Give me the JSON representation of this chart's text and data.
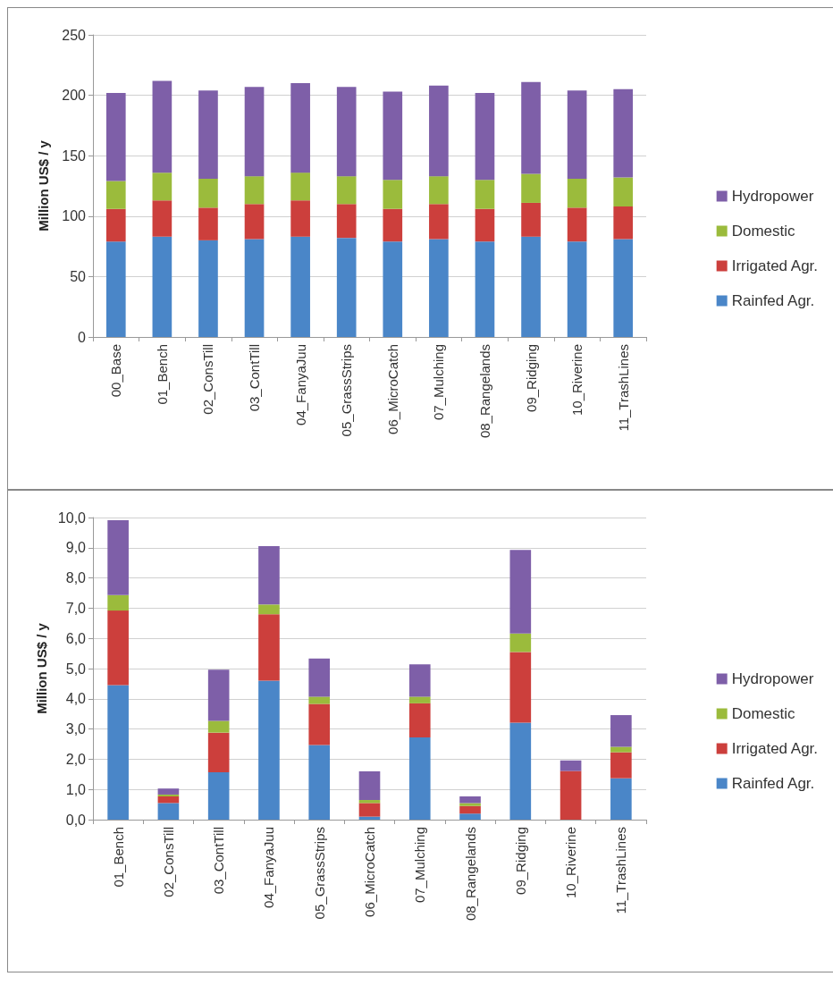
{
  "chart_data": [
    {
      "type": "bar",
      "stacked": true,
      "ylabel": "Million US$ / y",
      "categories": [
        "00_Base",
        "01_Bench",
        "02_ConsTill",
        "03_ContTill",
        "04_FanyaJuu",
        "05_GrassStrips",
        "06_MicroCatch",
        "07_Mulching",
        "08_Rangelands",
        "09_Ridging",
        "10_Riverine",
        "11_TrashLines"
      ],
      "series": [
        {
          "name": "Rainfed Agr.",
          "color": "#4a86c8",
          "values": [
            79,
            83,
            80,
            81,
            83,
            82,
            79,
            81,
            79,
            83,
            79,
            81
          ]
        },
        {
          "name": "Irrigated Agr.",
          "color": "#cc3f3c",
          "values": [
            27,
            30,
            27,
            29,
            30,
            28,
            27,
            29,
            27,
            28,
            28,
            27
          ]
        },
        {
          "name": "Domestic",
          "color": "#9bbb3c",
          "values": [
            23,
            23,
            24,
            23,
            23,
            23,
            24,
            23,
            24,
            24,
            24,
            24
          ]
        },
        {
          "name": "Hydropower",
          "color": "#7e5fa8",
          "values": [
            73,
            76,
            73,
            74,
            74,
            74,
            73,
            75,
            72,
            76,
            73,
            73
          ]
        }
      ],
      "ylim": [
        0,
        250
      ],
      "yticks": [
        0,
        50,
        100,
        150,
        200,
        250
      ],
      "grid": "y",
      "legend": "right"
    },
    {
      "type": "bar",
      "stacked": true,
      "ylabel": "Million US$ / y",
      "categories": [
        "01_Bench",
        "02_ConsTill",
        "03_ContTill",
        "04_FanyaJuu",
        "05_GrassStrips",
        "06_MicroCatch",
        "07_Mulching",
        "08_Rangelands",
        "09_Ridging",
        "10_Riverine",
        "11_TrashLines"
      ],
      "series": [
        {
          "name": "Rainfed Agr.",
          "color": "#4a86c8",
          "values": [
            4.45,
            0.55,
            1.57,
            4.6,
            2.47,
            0.1,
            2.72,
            0.2,
            3.21,
            0,
            1.37
          ]
        },
        {
          "name": "Irrigated Agr.",
          "color": "#cc3f3c",
          "values": [
            2.47,
            0.22,
            1.31,
            2.2,
            1.36,
            0.45,
            1.13,
            0.25,
            2.34,
            1.61,
            0.86
          ]
        },
        {
          "name": "Domestic",
          "color": "#9bbb3c",
          "values": [
            0.51,
            0.06,
            0.39,
            0.32,
            0.24,
            0.1,
            0.22,
            0.1,
            0.61,
            0,
            0.18
          ]
        },
        {
          "name": "Hydropower",
          "color": "#7e5fa8",
          "values": [
            2.48,
            0.2,
            1.69,
            1.93,
            1.26,
            0.95,
            1.07,
            0.22,
            2.77,
            0.35,
            1.05
          ]
        }
      ],
      "ylim": [
        0,
        10
      ],
      "yticks": [
        {
          "value": 0,
          "label": "0,0"
        },
        {
          "value": 1,
          "label": "1,0"
        },
        {
          "value": 2,
          "label": "2,0"
        },
        {
          "value": 3,
          "label": "3,0"
        },
        {
          "value": 4,
          "label": "4,0"
        },
        {
          "value": 5,
          "label": "5,0"
        },
        {
          "value": 6,
          "label": "6,0"
        },
        {
          "value": 7,
          "label": "7,0"
        },
        {
          "value": 8,
          "label": "8,0"
        },
        {
          "value": 9,
          "label": "9,0"
        },
        {
          "value": 10,
          "label": "10,0"
        }
      ],
      "grid": "y",
      "legend": "right"
    }
  ]
}
